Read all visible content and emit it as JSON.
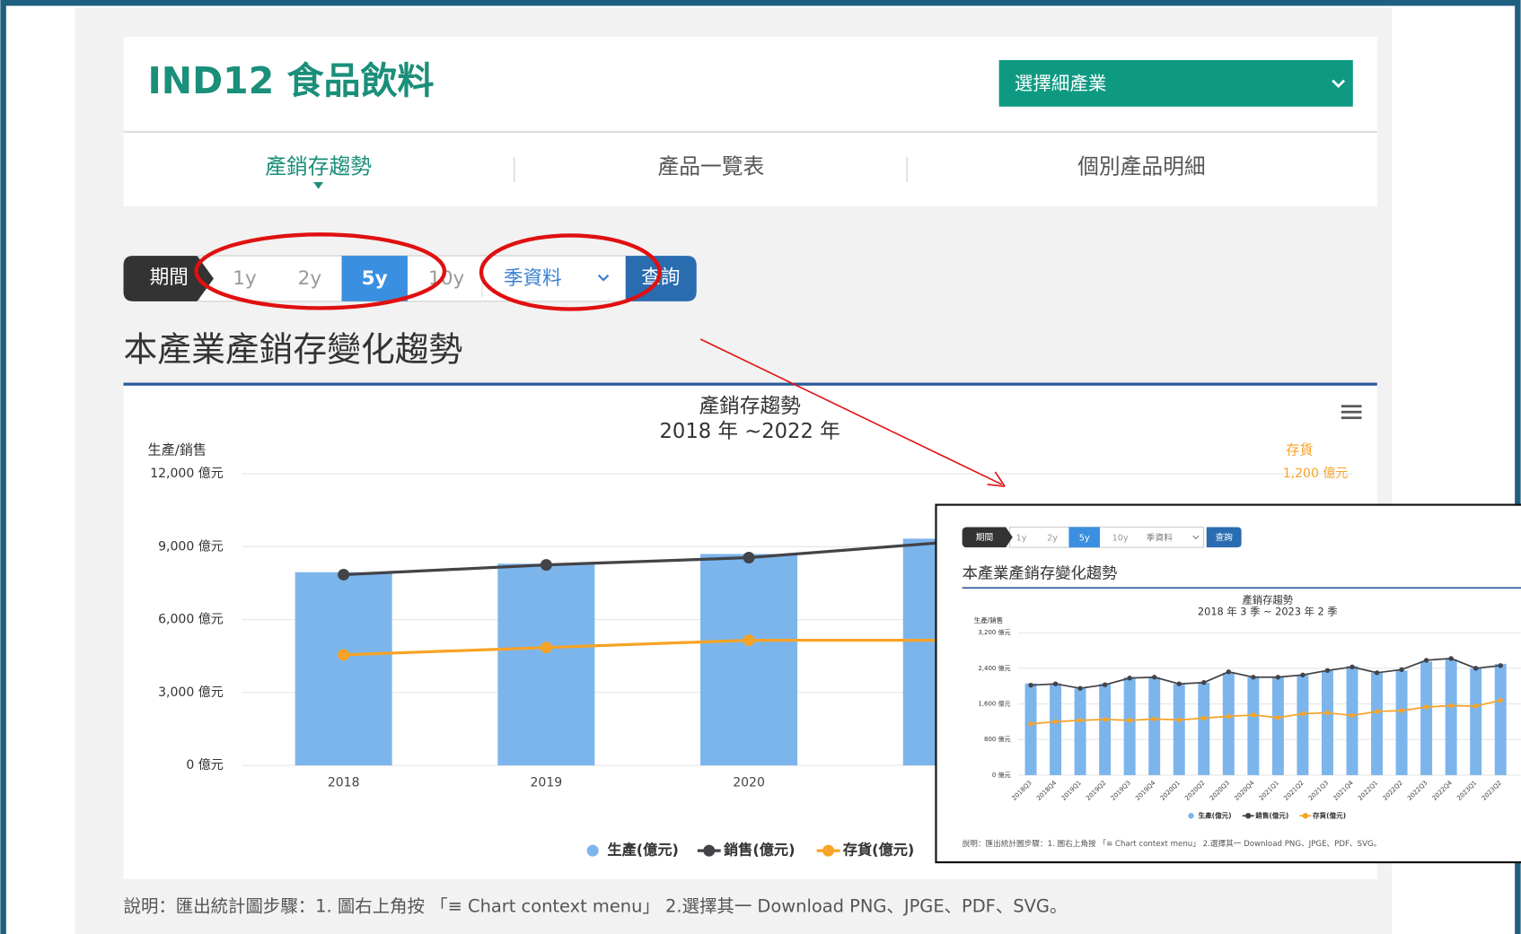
{
  "header": {
    "title": "IND12 食品飲料",
    "dropdown": "選擇細產業"
  },
  "tabs": [
    "產銷存趨勢",
    "產品一覽表",
    "個別產品明細"
  ],
  "controls": {
    "period_label": "期間",
    "periods": [
      "1y",
      "2y",
      "5y",
      "10y"
    ],
    "frequency": "季資料",
    "query": "查詢"
  },
  "section_title": "本產業產銷存變化趨勢",
  "note": "說明：匯出統計圖步驟：1. 圖右上角按 「≡ Chart context menu」 2.選擇其一 Download PNG、JPGE、PDF、SVG。",
  "inset": {
    "controls": {
      "period_label": "期間",
      "periods": [
        "1y",
        "2y",
        "5y",
        "10y"
      ],
      "frequency": "季資料",
      "query": "查詢"
    },
    "section_title": "本產業產銷存變化趨勢",
    "note": "說明：匯出統計圖步驟：1. 圖右上角按 「≡ Chart context menu」 2.選擇其一 Download PNG、JPGE、PDF、SVG。"
  },
  "chart_data": [
    {
      "type": "combo",
      "title": "產銷存趨勢",
      "subtitle": "2018 年 ~2022 年",
      "y_label": "生產/銷售",
      "y2_label": "存貨",
      "categories": [
        "2018",
        "2019",
        "2020",
        null,
        null
      ],
      "series": [
        {
          "name": "生產(億元)",
          "type": "bar",
          "color": "#7cb5ec",
          "values": [
            7950,
            8300,
            8700,
            9330,
            null
          ]
        },
        {
          "name": "銷售(億元)",
          "type": "line",
          "color": "#434348",
          "values": [
            7850,
            8250,
            8550,
            9200,
            null
          ]
        },
        {
          "name": "存貨(億元)",
          "type": "line",
          "color": "#f7a326",
          "axis": "y2",
          "values": [
            455,
            485,
            515,
            515,
            null
          ]
        }
      ],
      "ylim": [
        0,
        12000
      ],
      "yticks": [
        {
          "value": 0,
          "label": "0 億元"
        },
        {
          "value": 3000,
          "label": "3,000 億元"
        },
        {
          "value": 6000,
          "label": "6,000 億元"
        },
        {
          "value": 9000,
          "label": "9,000 億元"
        },
        {
          "value": 12000,
          "label": "12,000 億元"
        }
      ],
      "y2lim": [
        0,
        1200
      ],
      "y2ticks": [
        {
          "value": 1200,
          "label": "1,200 億元"
        }
      ],
      "grid": true
    },
    {
      "type": "combo",
      "title": "產銷存趨勢",
      "subtitle": "2018 年 3 季 ~ 2023 年 2 季",
      "y_label": "生產/銷售",
      "categories": [
        "2018Q3",
        "2018Q4",
        "2019Q1",
        "2019Q2",
        "2019Q3",
        "2019Q4",
        "2020Q1",
        "2020Q2",
        "2020Q3",
        "2020Q4",
        "2021Q1",
        "2021Q2",
        "2021Q3",
        "2021Q4",
        "2022Q1",
        "2022Q2",
        "2022Q3",
        "2022Q4",
        "2023Q1",
        "2023Q2"
      ],
      "series": [
        {
          "name": "生產(億元)",
          "type": "bar",
          "color": "#7cb5ec",
          "values": [
            2060,
            2060,
            1950,
            2050,
            2200,
            2200,
            2050,
            2080,
            2300,
            2200,
            2200,
            2250,
            2350,
            2450,
            2300,
            2350,
            2550,
            2600,
            2400,
            2500
          ]
        },
        {
          "name": "銷售(億元)",
          "type": "line",
          "color": "#434348",
          "values": [
            2020,
            2050,
            1950,
            2030,
            2180,
            2200,
            2050,
            2080,
            2320,
            2200,
            2200,
            2250,
            2350,
            2430,
            2300,
            2370,
            2580,
            2620,
            2400,
            2460
          ]
        },
        {
          "name": "存貨(億元)",
          "type": "line",
          "color": "#f7a326",
          "values": [
            1150,
            1200,
            1230,
            1250,
            1230,
            1260,
            1240,
            1280,
            1320,
            1350,
            1290,
            1380,
            1400,
            1340,
            1430,
            1450,
            1530,
            1560,
            1550,
            1680
          ]
        }
      ],
      "ylim": [
        0,
        3200
      ],
      "yticks": [
        {
          "value": 0,
          "label": "0 億元"
        },
        {
          "value": 800,
          "label": "800 億元"
        },
        {
          "value": 1600,
          "label": "1,600 億元"
        },
        {
          "value": 2400,
          "label": "2,400 億元"
        },
        {
          "value": 3200,
          "label": "3,200 億元"
        }
      ],
      "grid": true
    }
  ]
}
